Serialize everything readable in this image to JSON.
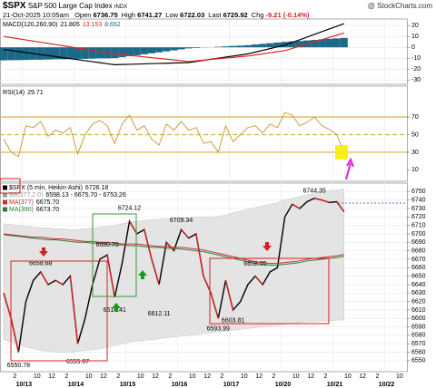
{
  "header": {
    "symbol": "$SPX",
    "name": "S&P 500 Large Cap Index",
    "exchange": "INDX",
    "source": "@ StockCharts.com",
    "datetime": "21-Oct-2025 10:05am",
    "quote": [
      {
        "label": "Open",
        "value": "6736.75"
      },
      {
        "label": "High",
        "value": "6741.27"
      },
      {
        "label": "Low",
        "value": "6722.03"
      },
      {
        "label": "Last",
        "value": "6725.92"
      },
      {
        "label": "Chg",
        "value": "-9.21 (-0.14%)"
      }
    ]
  },
  "chart_data": [
    {
      "type": "macd",
      "label": "MACD(120,260,90)",
      "ylim": [
        -34,
        26
      ],
      "yticks": [
        20,
        10,
        0,
        -10,
        -20,
        -30
      ],
      "grid": true,
      "series": [
        {
          "color": "#000000",
          "last_label": "21.805",
          "values": [
            -2,
            -2.9,
            -3.9,
            -4.8,
            -5.7,
            -6.7,
            -7.6,
            -8.5,
            -9.5,
            -10.4,
            -11.3,
            -12.3,
            -13.2,
            -14.1,
            -15.1,
            -16,
            -15.8,
            -15.6,
            -15.4,
            -15.2,
            -15,
            -14.8,
            -14.6,
            -14.4,
            -14.2,
            -14,
            -13,
            -12,
            -11,
            -10,
            -9,
            -8,
            -7,
            -6,
            -4.4,
            -2.8,
            -1.2,
            0.4,
            2,
            4.5,
            6.9,
            9.4,
            11.9,
            14.4,
            16.9,
            19.3,
            21.805,
            null,
            null,
            null,
            null,
            null,
            null,
            null,
            null
          ]
        },
        {
          "color": "#e02828",
          "last_label": "13.153",
          "values": [
            10,
            8.9,
            7.9,
            6.8,
            5.7,
            4.7,
            3.6,
            2.5,
            1.5,
            0.4,
            -0.7,
            -1.7,
            -2.8,
            -3.9,
            -4.9,
            -6,
            -6.7,
            -7.4,
            -8.1,
            -8.8,
            -9.5,
            -10.2,
            -10.9,
            -11.6,
            -12.3,
            -13,
            -12.4,
            -11.8,
            -11.1,
            -10.5,
            -9.9,
            -9.3,
            -8.6,
            -8,
            -7,
            -6,
            -5,
            -4,
            -3,
            -1,
            1.1,
            3.1,
            5.1,
            7.1,
            9.1,
            11.1,
            13.153,
            null,
            null,
            null,
            null,
            null,
            null,
            null,
            null
          ]
        },
        {
          "color": "#1c6a88",
          "style": "histogram",
          "last_label": "8.652",
          "values": [
            -12,
            -11.8,
            -11.8,
            -11.6,
            -11.4,
            -11.4,
            -11.2,
            -11,
            -11,
            -10.8,
            -10.6,
            -10.6,
            -10.4,
            -10.2,
            -10.2,
            -10,
            -9.1,
            -8.2,
            -7.3,
            -6.4,
            -5.5,
            -4.6,
            -3.7,
            -2.8,
            -1.9,
            -1,
            -0.6,
            -0.2,
            0.1,
            0.5,
            0.9,
            1.3,
            1.6,
            2,
            2.6,
            3.2,
            3.8,
            4.4,
            5,
            5.5,
            5.8,
            6.3,
            6.8,
            7.3,
            7.8,
            8.2,
            8.652,
            null,
            null,
            null,
            null,
            null,
            null,
            null,
            null
          ]
        }
      ]
    },
    {
      "type": "line",
      "label": "RSI(14)",
      "ylim": [
        -3,
        105
      ],
      "yticks": [
        70,
        50,
        30,
        10
      ],
      "levels": [
        70,
        50,
        30
      ],
      "level_color": "#d9b24a",
      "series": [
        {
          "color": "#caa040",
          "last_label": "29.71",
          "values": [
            45,
            30,
            25,
            60,
            58,
            65,
            48,
            55,
            52,
            58,
            28,
            50,
            62,
            66,
            60,
            40,
            62,
            72,
            55,
            60,
            45,
            38,
            62,
            55,
            65,
            55,
            58,
            40,
            42,
            30,
            60,
            42,
            50,
            58,
            60,
            52,
            62,
            58,
            75,
            72,
            60,
            64,
            70,
            60,
            56,
            50,
            29.71,
            null,
            null,
            null,
            null,
            null,
            null,
            null,
            null
          ]
        }
      ]
    },
    {
      "type": "line",
      "ylim": [
        6537,
        6760
      ],
      "grid": true,
      "yticks": [
        6750,
        6740,
        6730,
        6720,
        6710,
        6700,
        6690,
        6680,
        6670,
        6660,
        6650,
        6640,
        6630,
        6620,
        6610,
        6600,
        6590,
        6580,
        6570,
        6560,
        6550
      ],
      "x": [
        null,
        "2",
        null,
        null,
        "10",
        null,
        "12",
        null,
        "2",
        null,
        null,
        "10",
        null,
        "12",
        null,
        "2",
        null,
        null,
        "10",
        null,
        "12",
        null,
        "2",
        null,
        null,
        "10",
        null,
        "12",
        null,
        "2",
        null,
        null,
        "10",
        null,
        "12",
        null,
        "2",
        null,
        null,
        "10",
        null,
        "12",
        null,
        "2",
        null,
        null,
        "10",
        null,
        "12",
        null,
        "2",
        null,
        null,
        "10",
        null
      ],
      "dates": [
        null,
        null,
        null,
        "10/13",
        null,
        null,
        null,
        null,
        null,
        null,
        "10/14",
        null,
        null,
        null,
        null,
        null,
        null,
        "10/15",
        null,
        null,
        null,
        null,
        null,
        null,
        "10/16",
        null,
        null,
        null,
        null,
        null,
        null,
        "10/17",
        null,
        null,
        null,
        null,
        null,
        null,
        "10/20",
        null,
        null,
        null,
        null,
        null,
        null,
        "10/21",
        null,
        null,
        null,
        null,
        null,
        null,
        "10/22",
        null,
        null
      ],
      "band": {
        "name": "BB(377,2.0)",
        "color": "#e4e4e4",
        "label": "6598.13 - 6675.70 - 6753.26",
        "upper": [
          6712,
          6711,
          6710,
          6709,
          6708,
          6707,
          6707,
          6706,
          6706,
          6705,
          6705,
          6706,
          6707,
          6708,
          6709,
          6710,
          6712,
          6714,
          6715,
          6716,
          6717,
          6717,
          6718,
          6718,
          6719,
          6719,
          6720,
          6720,
          6720,
          6721,
          6722,
          6725,
          6727,
          6729,
          6731,
          6733,
          6735,
          6737,
          6740,
          6742,
          6744,
          6746,
          6748,
          6750,
          6751,
          6752,
          6753.26,
          null,
          null,
          null,
          null,
          null,
          null,
          null,
          null
        ],
        "lower": [
          6575,
          6572,
          6569,
          6566,
          6564,
          6562,
          6561,
          6560,
          6560,
          6560,
          6561,
          6562,
          6563,
          6564,
          6566,
          6568,
          6570,
          6572,
          6573,
          6574,
          6575,
          6576,
          6577,
          6578,
          6579,
          6580,
          6581,
          6582,
          6583,
          6584,
          6585,
          6586,
          6587,
          6588,
          6589,
          6590,
          6591,
          6592,
          6593,
          6594,
          6595,
          6596,
          6596,
          6597,
          6597,
          6598,
          6598.13,
          null,
          null,
          null,
          null,
          null,
          null,
          null,
          null
        ]
      },
      "series": [
        {
          "name": "$SPX (5 min, Heikin-Ashi)",
          "color": "#000000",
          "down_color": "#d42020",
          "last_label": "6726.18",
          "values": [
            6630,
            6600,
            6560,
            6620,
            6645,
            6655,
            6640,
            6645,
            6640,
            6650,
            6570,
            6600,
            6640,
            6670,
            6675,
            6625,
            6665,
            6715,
            6700,
            6705,
            6670,
            6640,
            6690,
            6680,
            6705,
            6695,
            6700,
            6650,
            6630,
            6600,
            6645,
            6610,
            6620,
            6640,
            6650,
            6640,
            6655,
            6660,
            6720,
            6735,
            6730,
            6738,
            6742,
            6740,
            6737,
            6738,
            6726.18,
            null,
            null,
            null,
            null,
            null,
            null,
            null,
            null
          ]
        },
        {
          "name": "MA(377)",
          "color": "#c83030",
          "last_label": "6675.70",
          "values": [
            6700,
            6699,
            6698,
            6697,
            6696,
            6696,
            6695,
            6694,
            6694,
            6693,
            6692,
            6691,
            6691,
            6690,
            6690,
            6689,
            6688,
            6688,
            6688,
            6687,
            6686,
            6685,
            6685,
            6684,
            6684,
            6683,
            6682,
            6681,
            6679,
            6677,
            6675,
            6673,
            6671,
            6669,
            6667,
            6666,
            6665,
            6665,
            6666,
            6667,
            6668,
            6670,
            6671,
            6672,
            6673,
            6674,
            6675.7,
            null,
            null,
            null,
            null,
            null,
            null,
            null,
            null
          ]
        },
        {
          "name": "MA(390)",
          "color": "#2e7d32",
          "last_label": "6673.70",
          "values": [
            6699,
            6698,
            6697,
            6696,
            6695,
            6694,
            6693,
            6693,
            6692,
            6691,
            6690,
            6690,
            6689,
            6689,
            6688,
            6687,
            6687,
            6686,
            6686,
            6685,
            6684,
            6684,
            6683,
            6683,
            6682,
            6681,
            6680,
            6679,
            6677,
            6675,
            6673,
            6671,
            6669,
            6667,
            6665,
            6664,
            6663,
            6663,
            6664,
            6665,
            6666,
            6668,
            6669,
            6670,
            6671,
            6672,
            6673.7,
            null,
            null,
            null,
            null,
            null,
            null,
            null,
            null
          ]
        }
      ],
      "extremes": [
        6550.78,
        6658.68,
        6555.07,
        6616.41,
        {
          "value": 6680.7,
          "label": "6680.70"
        },
        6724.12,
        6612.11,
        6709.34,
        6593.99,
        6603.81,
        6658.05,
        6744.35
      ]
    }
  ]
}
